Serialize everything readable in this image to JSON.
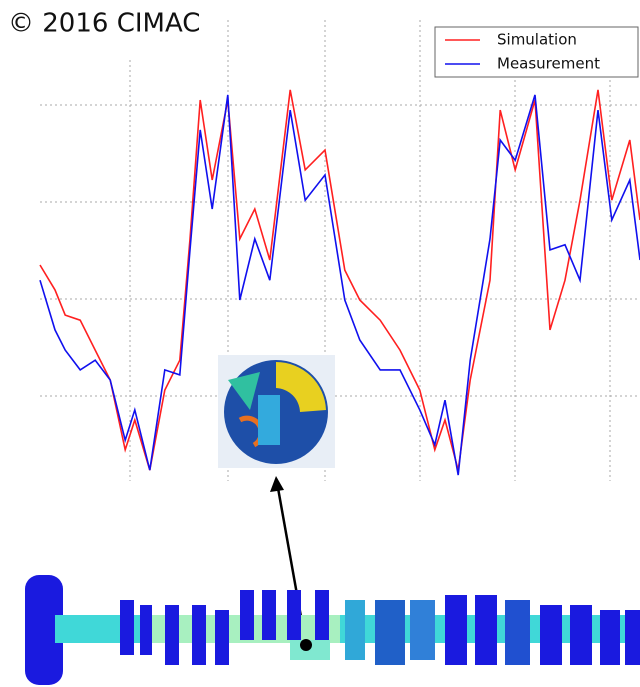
{
  "chart_data": {
    "type": "line",
    "annotations": [
      "© 2016 CIMAC"
    ],
    "x": [
      0,
      2.5,
      4.2,
      6.7,
      9.2,
      11.7,
      14.2,
      15.8,
      18.3,
      20.8,
      23.3,
      25,
      26.7,
      28.7,
      31.3,
      33.3,
      35.8,
      38.3,
      41.7,
      44.2,
      47.5,
      50.8,
      53.3,
      56.7,
      60,
      63.3,
      65.8,
      67.5,
      69.7,
      71.7,
      75,
      76.7,
      79.2,
      82.5,
      85,
      87.5,
      90,
      93,
      95.3,
      98.3,
      100
    ],
    "xlim": [
      0,
      100
    ],
    "ylim": [
      0,
      100
    ],
    "legend": "upper right",
    "series": [
      {
        "name": "Simulation",
        "color": "#ff2020",
        "values": [
          51.3,
          45.4,
          39.4,
          38.2,
          31.1,
          24.0,
          7.4,
          14.5,
          2.6,
          21.6,
          28.7,
          57.5,
          90.5,
          71.5,
          90.5,
          57.5,
          64.6,
          52.5,
          92.9,
          73.9,
          78.6,
          50.1,
          43.0,
          38.2,
          31.1,
          21.6,
          7.4,
          14.5,
          2.6,
          24.0,
          47.7,
          88.1,
          73.9,
          90.5,
          35.9,
          47.7,
          66.7,
          92.9,
          66.7,
          81.0,
          62.0
        ]
      },
      {
        "name": "Measurement",
        "color": "#1010ee",
        "values": [
          47.7,
          35.9,
          31.1,
          26.4,
          28.7,
          24.0,
          9.7,
          16.9,
          2.6,
          26.4,
          25.2,
          54.9,
          83.4,
          64.6,
          91.7,
          43.0,
          57.5,
          47.7,
          88.1,
          66.7,
          72.7,
          43.0,
          33.5,
          26.4,
          26.4,
          16.9,
          8.6,
          19.2,
          1.4,
          28.7,
          57.5,
          81.0,
          76.2,
          91.7,
          54.9,
          56.1,
          47.7,
          88.1,
          62.0,
          71.5,
          52.5
        ]
      }
    ]
  }
}
